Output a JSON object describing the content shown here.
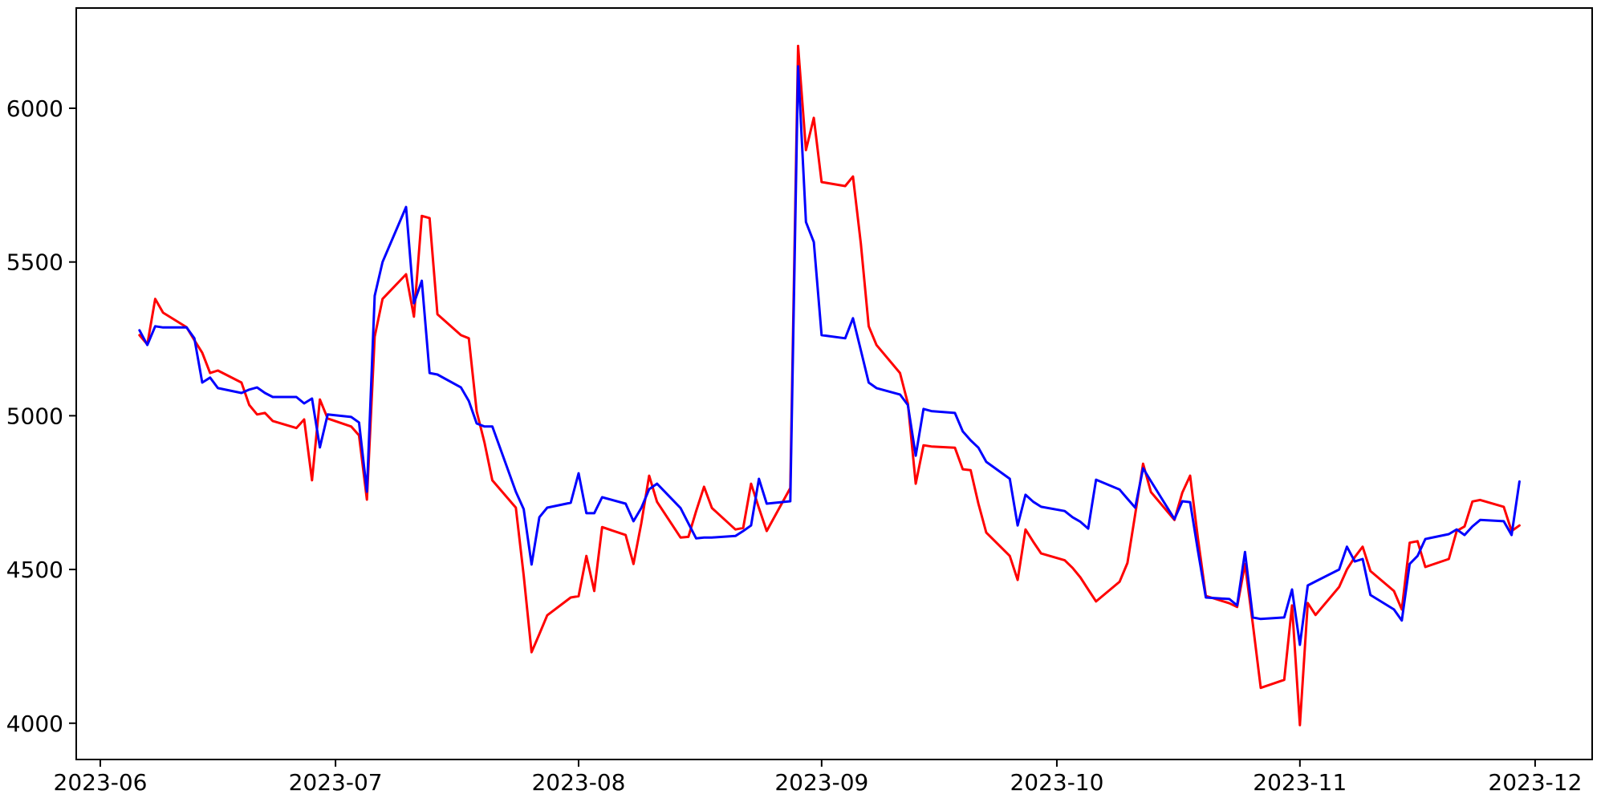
{
  "figure": {
    "background_color": "#ffffff",
    "spine_color": "#000000",
    "tick_color": "#000000",
    "tick_label_color": "#000000"
  },
  "chart_data": {
    "type": "line",
    "title": "",
    "xlabel": "",
    "ylabel": "",
    "grid": false,
    "legend_position": "none",
    "x_axis": {
      "tick_dates": [
        "2023-06-01",
        "2023-07-01",
        "2023-08-01",
        "2023-09-01",
        "2023-10-01",
        "2023-11-01",
        "2023-12-01"
      ],
      "tick_labels": [
        "2023-06",
        "2023-07",
        "2023-08",
        "2023-09",
        "2023-10",
        "2023-11",
        "2023-12"
      ]
    },
    "y_axis": {
      "tick_values": [
        4000,
        4500,
        5000,
        5500,
        6000
      ],
      "tick_labels": [
        "4000",
        "4500",
        "5000",
        "5500",
        "6000"
      ]
    },
    "ylim": [
      3882,
      6326
    ],
    "x": [
      "2023-06-06",
      "2023-06-07",
      "2023-06-08",
      "2023-06-09",
      "2023-06-12",
      "2023-06-13",
      "2023-06-14",
      "2023-06-15",
      "2023-06-16",
      "2023-06-19",
      "2023-06-20",
      "2023-06-21",
      "2023-06-22",
      "2023-06-23",
      "2023-06-26",
      "2023-06-27",
      "2023-06-28",
      "2023-06-29",
      "2023-06-30",
      "2023-07-03",
      "2023-07-04",
      "2023-07-05",
      "2023-07-06",
      "2023-07-07",
      "2023-07-10",
      "2023-07-11",
      "2023-07-12",
      "2023-07-13",
      "2023-07-14",
      "2023-07-17",
      "2023-07-18",
      "2023-07-19",
      "2023-07-20",
      "2023-07-21",
      "2023-07-24",
      "2023-07-25",
      "2023-07-26",
      "2023-07-27",
      "2023-07-28",
      "2023-07-31",
      "2023-08-01",
      "2023-08-02",
      "2023-08-03",
      "2023-08-04",
      "2023-08-07",
      "2023-08-08",
      "2023-08-09",
      "2023-08-10",
      "2023-08-11",
      "2023-08-14",
      "2023-08-15",
      "2023-08-16",
      "2023-08-17",
      "2023-08-18",
      "2023-08-21",
      "2023-08-22",
      "2023-08-23",
      "2023-08-24",
      "2023-08-25",
      "2023-08-28",
      "2023-08-29",
      "2023-08-30",
      "2023-08-31",
      "2023-09-01",
      "2023-09-04",
      "2023-09-05",
      "2023-09-06",
      "2023-09-07",
      "2023-09-08",
      "2023-09-11",
      "2023-09-12",
      "2023-09-13",
      "2023-09-14",
      "2023-09-15",
      "2023-09-18",
      "2023-09-19",
      "2023-09-20",
      "2023-09-21",
      "2023-09-22",
      "2023-09-25",
      "2023-09-26",
      "2023-09-27",
      "2023-09-28",
      "2023-09-29",
      "2023-10-02",
      "2023-10-03",
      "2023-10-04",
      "2023-10-05",
      "2023-10-06",
      "2023-10-09",
      "2023-10-10",
      "2023-10-11",
      "2023-10-12",
      "2023-10-13",
      "2023-10-16",
      "2023-10-17",
      "2023-10-18",
      "2023-10-19",
      "2023-10-20",
      "2023-10-23",
      "2023-10-24",
      "2023-10-25",
      "2023-10-26",
      "2023-10-27",
      "2023-10-30",
      "2023-10-31",
      "2023-11-01",
      "2023-11-02",
      "2023-11-03",
      "2023-11-06",
      "2023-11-07",
      "2023-11-08",
      "2023-11-09",
      "2023-11-10",
      "2023-11-13",
      "2023-11-14",
      "2023-11-15",
      "2023-11-16",
      "2023-11-17",
      "2023-11-20",
      "2023-11-21",
      "2023-11-22",
      "2023-11-23",
      "2023-11-24",
      "2023-11-27",
      "2023-11-28",
      "2023-11-29"
    ],
    "series": [
      {
        "name": "red",
        "color": "#ff0000",
        "values": [
          5262,
          5232,
          5380,
          5335,
          5288,
          5246,
          5205,
          5139,
          5147,
          5108,
          5035,
          5004,
          5009,
          4983,
          4960,
          4988,
          4790,
          5053,
          4991,
          4965,
          4936,
          4727,
          5257,
          5380,
          5460,
          5322,
          5650,
          5643,
          5330,
          5262,
          5252,
          5014,
          4913,
          4790,
          4701,
          4480,
          4231,
          4290,
          4351,
          4409,
          4413,
          4544,
          4430,
          4638,
          4612,
          4518,
          4650,
          4805,
          4720,
          4604,
          4606,
          4690,
          4769,
          4700,
          4630,
          4635,
          4779,
          4700,
          4625,
          4765,
          6203,
          5864,
          5969,
          5760,
          5747,
          5778,
          5560,
          5291,
          5230,
          5139,
          5040,
          4779,
          4904,
          4900,
          4896,
          4826,
          4823,
          4714,
          4620,
          4544,
          4466,
          4630,
          4590,
          4552,
          4530,
          4505,
          4474,
          4435,
          4396,
          4460,
          4521,
          4680,
          4844,
          4752,
          4661,
          4750,
          4805,
          4600,
          4414,
          4390,
          4378,
          4518,
          4322,
          4115,
          4141,
          4383,
          3994,
          4391,
          4352,
          4443,
          4500,
          4540,
          4574,
          4495,
          4430,
          4370,
          4587,
          4592,
          4508,
          4534,
          4625,
          4640,
          4721,
          4726,
          4704,
          4625,
          4643
        ]
      },
      {
        "name": "blue",
        "color": "#0000ff",
        "values": [
          5278,
          5230,
          5291,
          5287,
          5287,
          5252,
          5108,
          5124,
          5090,
          5074,
          5085,
          5092,
          5074,
          5061,
          5061,
          5040,
          5056,
          4897,
          5004,
          4996,
          4978,
          4753,
          5390,
          5500,
          5679,
          5366,
          5439,
          5139,
          5134,
          5092,
          5048,
          4975,
          4965,
          4965,
          4753,
          4696,
          4516,
          4670,
          4701,
          4717,
          4813,
          4683,
          4683,
          4735,
          4714,
          4657,
          4700,
          4761,
          4779,
          4700,
          4650,
          4601,
          4604,
          4604,
          4609,
          4625,
          4643,
          4795,
          4714,
          4722,
          6136,
          5630,
          5565,
          5262,
          5252,
          5317,
          5213,
          5108,
          5090,
          5069,
          5035,
          4870,
          5022,
          5015,
          5009,
          4949,
          4920,
          4896,
          4850,
          4795,
          4643,
          4743,
          4720,
          4704,
          4690,
          4670,
          4655,
          4633,
          4792,
          4760,
          4730,
          4701,
          4829,
          4787,
          4664,
          4722,
          4719,
          4560,
          4409,
          4404,
          4383,
          4557,
          4344,
          4339,
          4344,
          4435,
          4255,
          4448,
          4461,
          4500,
          4574,
          4526,
          4534,
          4417,
          4370,
          4334,
          4518,
          4544,
          4599,
          4615,
          4630,
          4612,
          4640,
          4661,
          4657,
          4612,
          4786
        ]
      }
    ]
  }
}
